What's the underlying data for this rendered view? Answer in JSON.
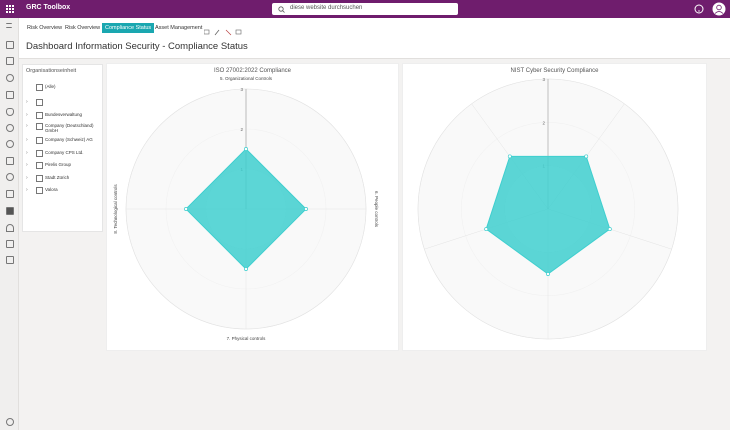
{
  "header": {
    "app_title": "GRC Toolbox",
    "search_placeholder": "diese website durchsuchen"
  },
  "tabs": [
    "Risk Overview",
    "Risk Overview",
    "Compliance Status",
    "Asset Management"
  ],
  "active_tab": 2,
  "page_title": "Dashboard Information Security -  Compliance Status",
  "filter": {
    "title": "Organisationseinheit",
    "items": [
      "(Alle)",
      "Bundesverwaltung",
      "Company (Deutschland) GmbH",
      "Company (Schweiz) AG",
      "Company CPS Ltd.",
      "Pirelis Group",
      "Stadt Zürich",
      "Valora"
    ]
  },
  "chart_data": [
    {
      "type": "radar",
      "title": "ISO 27002:2022 Compliance",
      "axes": [
        "5. Organizational Controls",
        "6. People controls",
        "7. Physical controls",
        "8. Technological controls"
      ],
      "rlim": [
        0,
        3
      ],
      "rticks": [
        1,
        2,
        3
      ],
      "series": [
        {
          "color": "#3fcfcf",
          "values": [
            1.5,
            1.5,
            1.5,
            1.5
          ]
        }
      ]
    },
    {
      "type": "radar",
      "title": "NIST Cyber Security Compliance",
      "rlim": [
        0,
        3
      ],
      "rticks": [
        1,
        2,
        3
      ],
      "series": [
        {
          "color": "#3fcfcf",
          "values": [
            1.5,
            1.5,
            1.5,
            1.5,
            1.5
          ]
        }
      ]
    }
  ]
}
